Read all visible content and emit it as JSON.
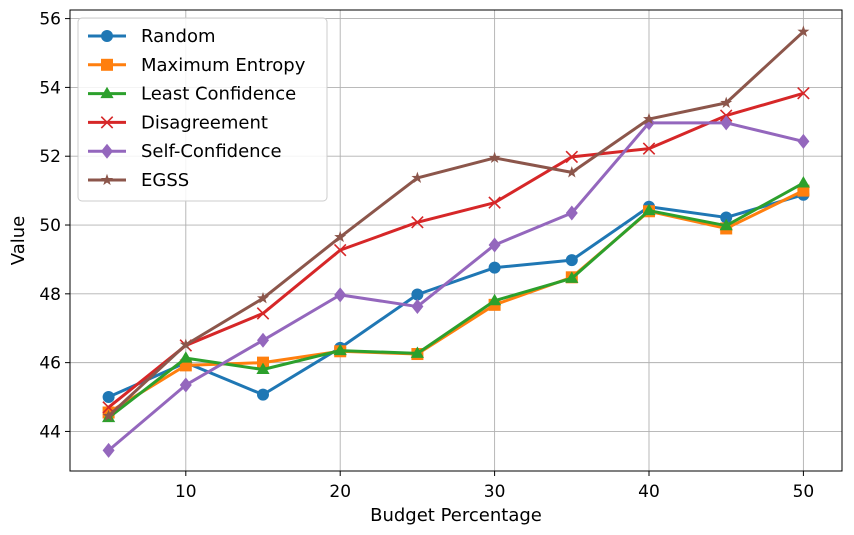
{
  "chart_data": {
    "type": "line",
    "title": "",
    "xlabel": "Budget Percentage",
    "ylabel": "Value",
    "x": [
      5,
      10,
      15,
      20,
      25,
      30,
      35,
      40,
      45,
      50
    ],
    "xlim": [
      2.5,
      52.5
    ],
    "ylim": [
      42.85,
      56.25
    ],
    "xticks": [
      10,
      20,
      30,
      40,
      50
    ],
    "yticks": [
      44,
      46,
      48,
      50,
      52,
      54,
      56
    ],
    "grid": true,
    "legend_position": "top-left",
    "series": [
      {
        "name": "Random",
        "color": "#1f77b4",
        "marker": "circle",
        "values": [
          45.0,
          46.0,
          45.07,
          46.43,
          47.98,
          48.76,
          48.98,
          50.53,
          50.22,
          50.88
        ]
      },
      {
        "name": "Maximum Entropy",
        "color": "#ff7f0e",
        "marker": "square",
        "values": [
          44.55,
          45.92,
          46.0,
          46.33,
          46.25,
          47.68,
          48.48,
          50.4,
          49.9,
          51.0
        ]
      },
      {
        "name": "Least Confidence",
        "color": "#2ca02c",
        "marker": "triangle",
        "values": [
          44.4,
          46.13,
          45.8,
          46.35,
          46.27,
          47.8,
          48.45,
          50.42,
          49.98,
          51.22
        ]
      },
      {
        "name": "Disagreement",
        "color": "#d62728",
        "marker": "x",
        "values": [
          44.7,
          46.5,
          47.43,
          49.27,
          50.08,
          50.65,
          51.98,
          52.22,
          53.18,
          53.83
        ]
      },
      {
        "name": "Self-Confidence",
        "color": "#9467bd",
        "marker": "diamond",
        "values": [
          43.45,
          45.35,
          46.65,
          47.97,
          47.63,
          49.42,
          50.35,
          52.97,
          52.97,
          52.43
        ]
      },
      {
        "name": "EGSS",
        "color": "#8c564b",
        "marker": "star",
        "values": [
          44.45,
          46.52,
          47.87,
          49.65,
          51.37,
          51.95,
          51.53,
          53.08,
          53.55,
          55.62
        ]
      }
    ]
  }
}
